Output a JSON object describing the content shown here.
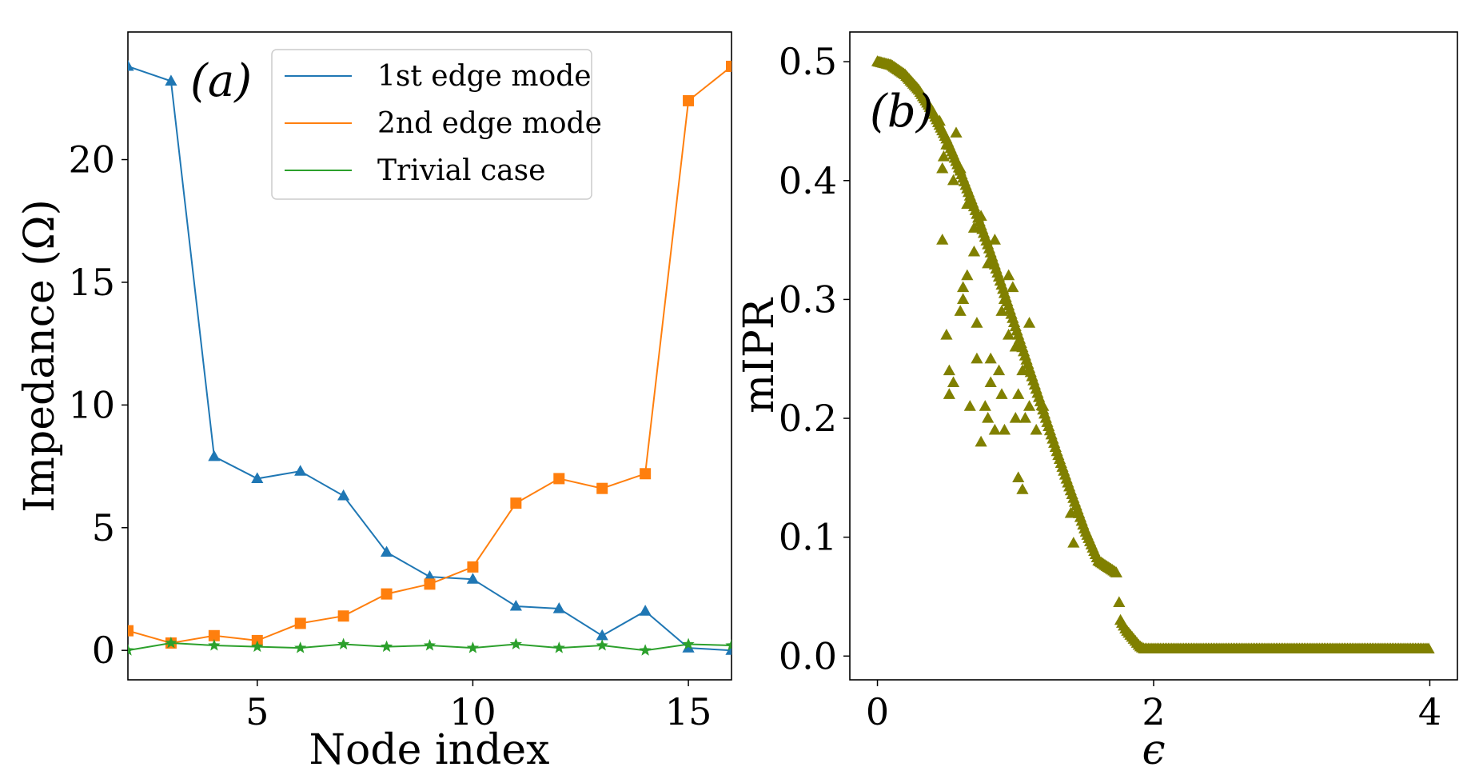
{
  "chart_data": [
    {
      "type": "line",
      "panel_label": "(a)",
      "xlabel": "Node index",
      "ylabel": "Impedance (Ω)",
      "xlim": [
        2,
        16
      ],
      "ylim": [
        -1.2,
        25.2
      ],
      "xticks": [
        5,
        10,
        15
      ],
      "xtick_labels": [
        "5",
        "10",
        "15"
      ],
      "yticks": [
        0,
        5,
        10,
        15,
        20
      ],
      "ytick_labels": [
        "0",
        "5",
        "10",
        "15",
        "20"
      ],
      "legend_position": "top-center",
      "x": [
        2,
        3,
        4,
        5,
        6,
        7,
        8,
        9,
        10,
        11,
        12,
        13,
        14,
        15,
        16
      ],
      "series": [
        {
          "name": "1st edge mode",
          "color": "#1f77b4",
          "marker": "triangle",
          "values": [
            23.8,
            23.2,
            7.9,
            7.0,
            7.3,
            6.3,
            4.0,
            3.0,
            2.9,
            1.8,
            1.7,
            0.6,
            1.6,
            0.1,
            0.0
          ]
        },
        {
          "name": "2nd edge mode",
          "color": "#ff7f0e",
          "marker": "square",
          "values": [
            0.8,
            0.3,
            0.6,
            0.4,
            1.1,
            1.4,
            2.3,
            2.7,
            3.4,
            6.0,
            7.0,
            6.6,
            7.2,
            22.4,
            23.8
          ]
        },
        {
          "name": "Trivial case",
          "color": "#2ca02c",
          "marker": "star",
          "values": [
            0.0,
            0.3,
            0.2,
            0.15,
            0.1,
            0.25,
            0.15,
            0.2,
            0.1,
            0.25,
            0.1,
            0.2,
            0.0,
            0.25,
            0.2
          ]
        }
      ]
    },
    {
      "type": "scatter",
      "panel_label": "(b)",
      "xlabel": "ϵ",
      "ylabel": "mIPR",
      "xlim": [
        -0.2,
        4.2
      ],
      "ylim": [
        -0.02,
        0.525
      ],
      "xticks": [
        0,
        2,
        4
      ],
      "xtick_labels": [
        "0",
        "2",
        "4"
      ],
      "yticks": [
        0.0,
        0.1,
        0.2,
        0.3,
        0.4,
        0.5
      ],
      "ytick_labels": [
        "0.0",
        "0.1",
        "0.2",
        "0.3",
        "0.4",
        "0.5"
      ],
      "marker_color": "#808000",
      "marker": "triangle",
      "main_curve": {
        "x": [
          0.0,
          0.1,
          0.2,
          0.3,
          0.4,
          0.5,
          0.6,
          0.7,
          0.8,
          0.9,
          1.0,
          1.1,
          1.2,
          1.3,
          1.4,
          1.5,
          1.6,
          1.73
        ],
        "y": [
          0.5,
          0.497,
          0.489,
          0.476,
          0.458,
          0.435,
          0.408,
          0.378,
          0.346,
          0.312,
          0.277,
          0.242,
          0.207,
          0.172,
          0.139,
          0.107,
          0.08,
          0.07
        ]
      },
      "tail_curve": {
        "x": [
          1.76,
          1.8,
          1.85,
          1.9,
          1.93,
          2.0,
          2.5,
          3.0,
          3.5,
          4.0
        ],
        "y": [
          0.03,
          0.022,
          0.015,
          0.008,
          0.006,
          0.006,
          0.006,
          0.006,
          0.006,
          0.006
        ]
      },
      "scattered_points": {
        "x": [
          0.45,
          0.47,
          0.48,
          0.5,
          0.52,
          0.55,
          0.57,
          0.6,
          0.62,
          0.65,
          0.67,
          0.7,
          0.72,
          0.75,
          0.78,
          0.8,
          0.82,
          0.85,
          0.88,
          0.9,
          0.92,
          0.95,
          0.98,
          1.0,
          1.02,
          1.05,
          1.07,
          1.1,
          1.15,
          1.2,
          1.4,
          1.42,
          1.75,
          0.47,
          0.5,
          0.55,
          0.6,
          0.65,
          0.7,
          0.75,
          0.8,
          0.85,
          0.9,
          0.95,
          1.0,
          1.05,
          1.1,
          0.52,
          0.62,
          0.72,
          0.82,
          0.92,
          1.02
        ],
        "y": [
          0.45,
          0.35,
          0.42,
          0.27,
          0.24,
          0.23,
          0.44,
          0.29,
          0.31,
          0.32,
          0.21,
          0.36,
          0.25,
          0.18,
          0.21,
          0.2,
          0.23,
          0.19,
          0.24,
          0.22,
          0.3,
          0.27,
          0.31,
          0.2,
          0.15,
          0.14,
          0.2,
          0.21,
          0.19,
          0.21,
          0.12,
          0.095,
          0.045,
          0.41,
          0.43,
          0.4,
          0.41,
          0.38,
          0.34,
          0.37,
          0.33,
          0.35,
          0.29,
          0.32,
          0.26,
          0.24,
          0.28,
          0.22,
          0.3,
          0.28,
          0.25,
          0.19,
          0.22
        ]
      }
    }
  ]
}
